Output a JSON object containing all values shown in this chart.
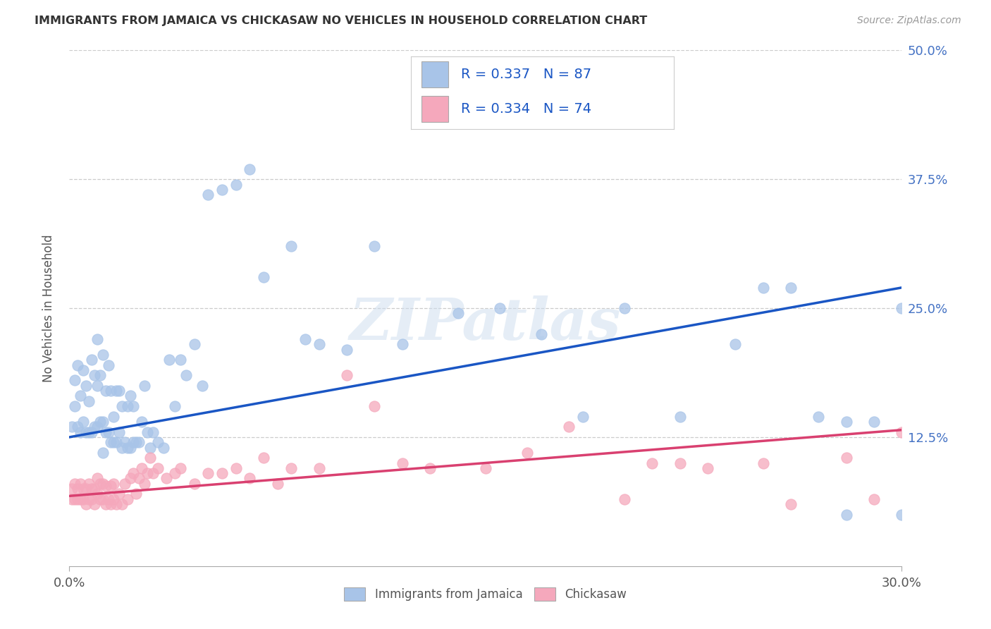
{
  "title": "IMMIGRANTS FROM JAMAICA VS CHICKASAW NO VEHICLES IN HOUSEHOLD CORRELATION CHART",
  "source": "Source: ZipAtlas.com",
  "ylabel": "No Vehicles in Household",
  "blue_label": "Immigrants from Jamaica",
  "pink_label": "Chickasaw",
  "blue_R": "0.337",
  "blue_N": "87",
  "pink_R": "0.334",
  "pink_N": "74",
  "blue_color": "#a8c4e8",
  "pink_color": "#f5a8bc",
  "blue_line_color": "#1a56c4",
  "pink_line_color": "#d94070",
  "watermark": "ZIPatlas",
  "xlim": [
    0.0,
    0.3
  ],
  "ylim": [
    0.0,
    0.5
  ],
  "blue_line_x0": 0.0,
  "blue_line_y0": 0.125,
  "blue_line_x1": 0.3,
  "blue_line_y1": 0.27,
  "pink_line_x0": 0.0,
  "pink_line_y0": 0.068,
  "pink_line_x1": 0.3,
  "pink_line_y1": 0.132,
  "blue_scatter_x": [
    0.001,
    0.002,
    0.002,
    0.003,
    0.003,
    0.004,
    0.004,
    0.005,
    0.005,
    0.006,
    0.006,
    0.007,
    0.007,
    0.008,
    0.008,
    0.009,
    0.009,
    0.01,
    0.01,
    0.01,
    0.011,
    0.011,
    0.012,
    0.012,
    0.012,
    0.013,
    0.013,
    0.014,
    0.014,
    0.015,
    0.015,
    0.016,
    0.016,
    0.017,
    0.017,
    0.018,
    0.018,
    0.019,
    0.019,
    0.02,
    0.021,
    0.021,
    0.022,
    0.022,
    0.023,
    0.023,
    0.024,
    0.025,
    0.026,
    0.027,
    0.028,
    0.029,
    0.03,
    0.032,
    0.034,
    0.036,
    0.038,
    0.04,
    0.042,
    0.045,
    0.048,
    0.05,
    0.055,
    0.06,
    0.065,
    0.07,
    0.08,
    0.085,
    0.09,
    0.1,
    0.11,
    0.12,
    0.14,
    0.155,
    0.17,
    0.185,
    0.2,
    0.22,
    0.24,
    0.25,
    0.26,
    0.27,
    0.28,
    0.29,
    0.3,
    0.3,
    0.28
  ],
  "blue_scatter_y": [
    0.135,
    0.155,
    0.18,
    0.135,
    0.195,
    0.13,
    0.165,
    0.19,
    0.14,
    0.13,
    0.175,
    0.13,
    0.16,
    0.13,
    0.2,
    0.135,
    0.185,
    0.135,
    0.175,
    0.22,
    0.14,
    0.185,
    0.11,
    0.14,
    0.205,
    0.13,
    0.17,
    0.13,
    0.195,
    0.12,
    0.17,
    0.12,
    0.145,
    0.12,
    0.17,
    0.13,
    0.17,
    0.115,
    0.155,
    0.12,
    0.115,
    0.155,
    0.115,
    0.165,
    0.12,
    0.155,
    0.12,
    0.12,
    0.14,
    0.175,
    0.13,
    0.115,
    0.13,
    0.12,
    0.115,
    0.2,
    0.155,
    0.2,
    0.185,
    0.215,
    0.175,
    0.36,
    0.365,
    0.37,
    0.385,
    0.28,
    0.31,
    0.22,
    0.215,
    0.21,
    0.31,
    0.215,
    0.245,
    0.25,
    0.225,
    0.145,
    0.25,
    0.145,
    0.215,
    0.27,
    0.27,
    0.145,
    0.14,
    0.14,
    0.05,
    0.25,
    0.05
  ],
  "pink_scatter_x": [
    0.001,
    0.001,
    0.002,
    0.002,
    0.003,
    0.003,
    0.004,
    0.004,
    0.005,
    0.005,
    0.006,
    0.006,
    0.007,
    0.007,
    0.008,
    0.008,
    0.009,
    0.009,
    0.01,
    0.01,
    0.011,
    0.011,
    0.012,
    0.012,
    0.013,
    0.013,
    0.014,
    0.015,
    0.015,
    0.016,
    0.016,
    0.017,
    0.018,
    0.019,
    0.02,
    0.021,
    0.022,
    0.023,
    0.024,
    0.025,
    0.026,
    0.027,
    0.028,
    0.029,
    0.03,
    0.032,
    0.035,
    0.038,
    0.04,
    0.045,
    0.05,
    0.055,
    0.06,
    0.065,
    0.07,
    0.075,
    0.08,
    0.09,
    0.1,
    0.11,
    0.12,
    0.13,
    0.15,
    0.165,
    0.18,
    0.2,
    0.21,
    0.22,
    0.23,
    0.25,
    0.26,
    0.28,
    0.29,
    0.3
  ],
  "pink_scatter_y": [
    0.065,
    0.075,
    0.065,
    0.08,
    0.065,
    0.075,
    0.065,
    0.08,
    0.065,
    0.075,
    0.06,
    0.075,
    0.065,
    0.08,
    0.065,
    0.075,
    0.06,
    0.075,
    0.07,
    0.085,
    0.065,
    0.08,
    0.065,
    0.08,
    0.06,
    0.078,
    0.065,
    0.06,
    0.078,
    0.065,
    0.08,
    0.06,
    0.07,
    0.06,
    0.08,
    0.065,
    0.085,
    0.09,
    0.07,
    0.085,
    0.095,
    0.08,
    0.09,
    0.105,
    0.09,
    0.095,
    0.085,
    0.09,
    0.095,
    0.08,
    0.09,
    0.09,
    0.095,
    0.085,
    0.105,
    0.08,
    0.095,
    0.095,
    0.185,
    0.155,
    0.1,
    0.095,
    0.095,
    0.11,
    0.135,
    0.065,
    0.1,
    0.1,
    0.095,
    0.1,
    0.06,
    0.105,
    0.065,
    0.13
  ]
}
